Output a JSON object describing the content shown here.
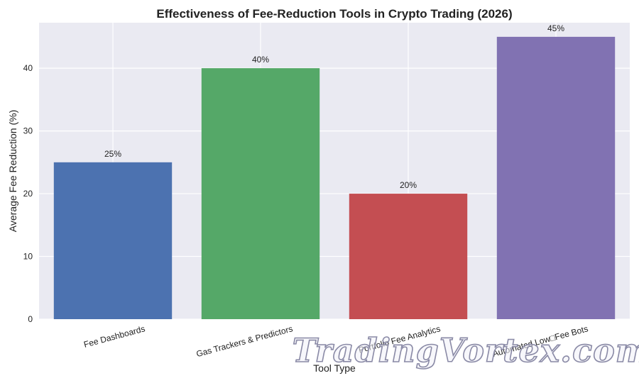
{
  "chart_data": {
    "type": "bar",
    "title": "Effectiveness of Fee-Reduction Tools in Crypto Trading (2026)",
    "xlabel": "Tool Type",
    "ylabel": "Average Fee Reduction (%)",
    "categories": [
      "Fee Dashboards",
      "Gas Trackers & Predictors",
      "Portfolio Fee Analytics",
      "Automated Low□Fee Bots"
    ],
    "values": [
      25,
      40,
      20,
      45
    ],
    "data_labels": [
      "25%",
      "40%",
      "20%",
      "45%"
    ],
    "colors": [
      "#4c72b0",
      "#55a868",
      "#c44e52",
      "#8172b2"
    ],
    "ylim": [
      0,
      47.25
    ],
    "yticks": [
      0,
      10,
      20,
      30,
      40
    ],
    "grid": true,
    "background": "#eaeaf2"
  },
  "watermark": {
    "text": "TradingVortex.com"
  }
}
